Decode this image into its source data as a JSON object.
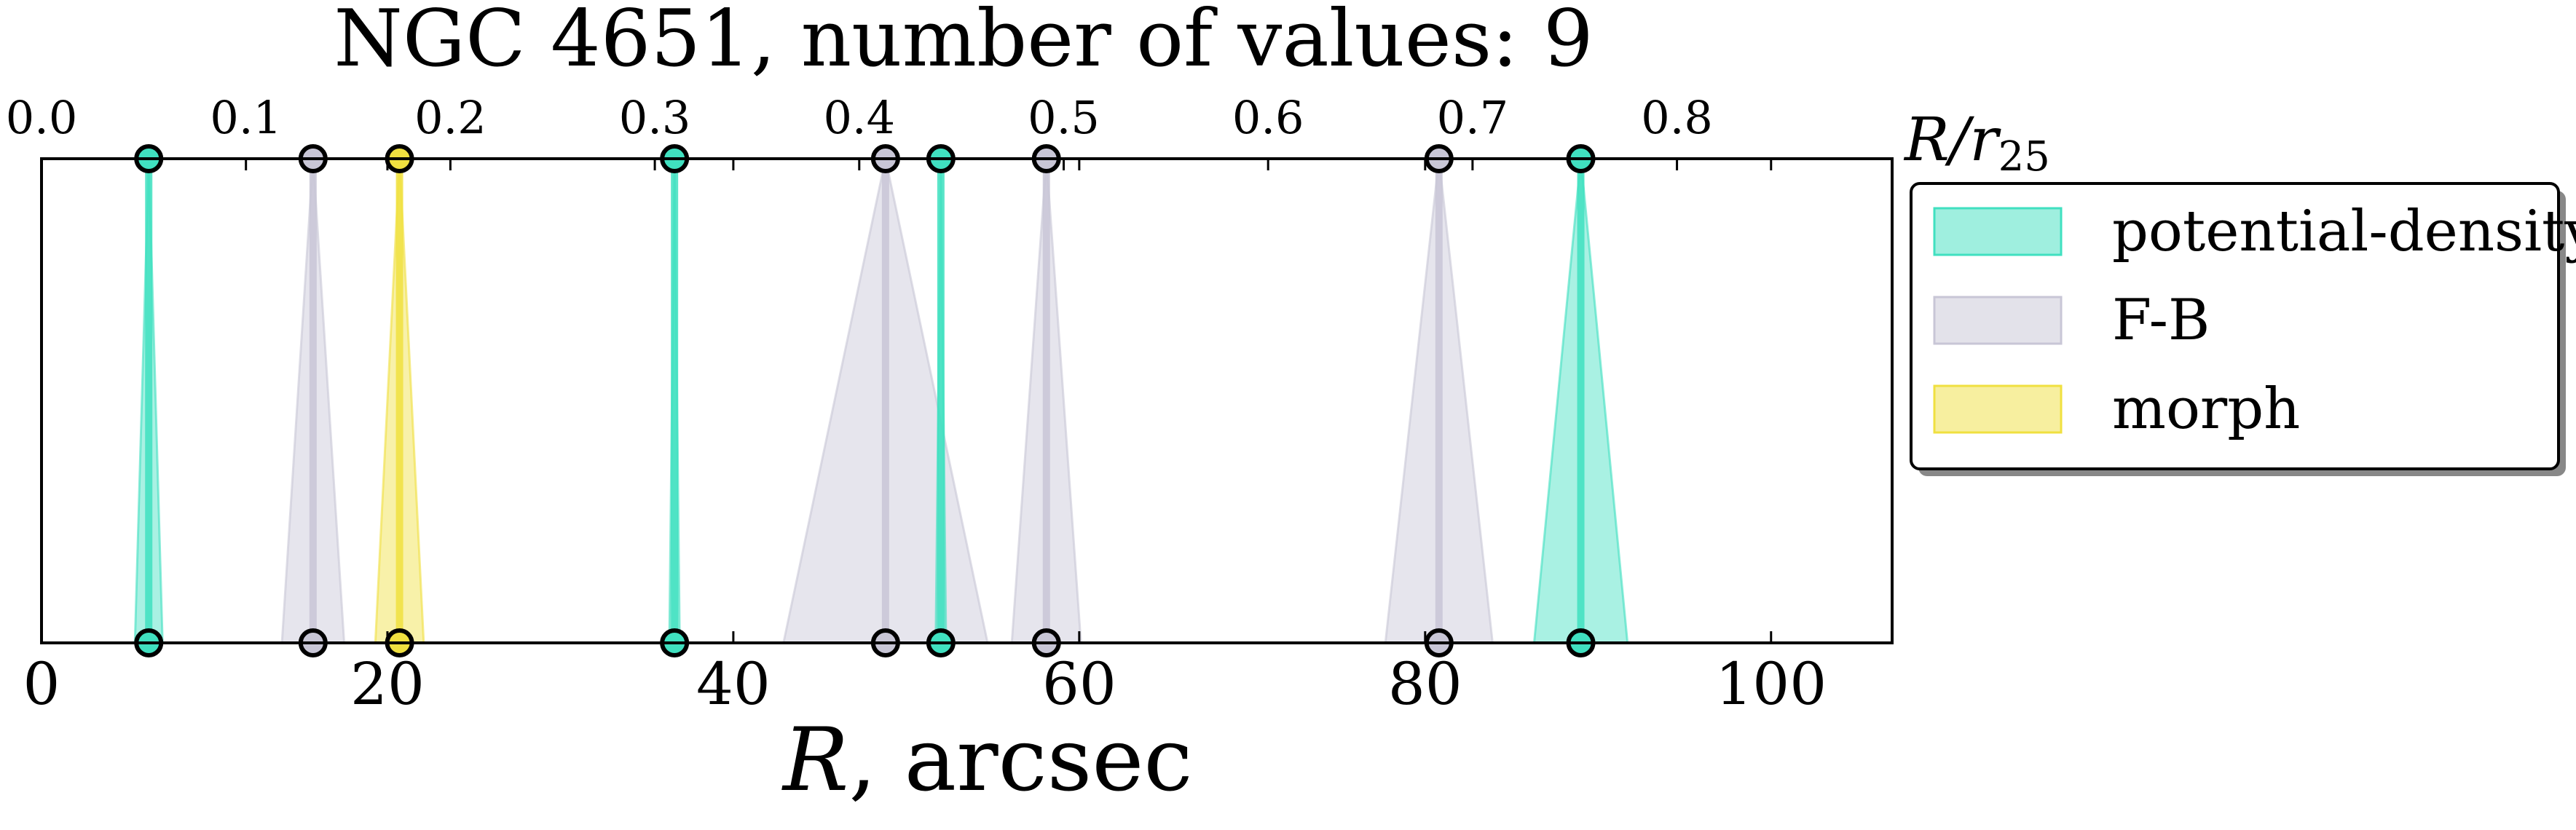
{
  "chart_data": {
    "type": "interval",
    "title": "NGC 4651, number of values: 9",
    "xlabel_main": "R",
    "xlabel_unit": ", arcsec",
    "xlabel_top": "R/r",
    "xlabel_top_sub": "25",
    "xlim": [
      0,
      107
    ],
    "xticks": [
      0,
      20,
      40,
      60,
      80,
      100
    ],
    "xticks_top": [
      "0.0",
      "0.1",
      "0.2",
      "0.3",
      "0.4",
      "0.5",
      "0.6",
      "0.7",
      "0.8"
    ],
    "top_axis_scale_arcsec_per_unit": 118.2,
    "legend_position": "upper-right outside",
    "colors": {
      "potential-density": "#40e0c0",
      "F-B": "#c8c6d6",
      "morph": "#f0e040"
    },
    "series": [
      {
        "name": "potential-density",
        "intervals": [
          {
            "center": 6.2,
            "err": 0.8
          },
          {
            "center": 36.6,
            "err": 0.3
          },
          {
            "center": 52.0,
            "err": 0.3
          },
          {
            "center": 89.0,
            "err": 2.7
          }
        ]
      },
      {
        "name": "F-B",
        "intervals": [
          {
            "center": 15.7,
            "err": 1.8
          },
          {
            "center": 48.8,
            "err": 5.9
          },
          {
            "center": 58.1,
            "err": 2.0
          },
          {
            "center": 80.8,
            "err": 3.1
          }
        ]
      },
      {
        "name": "morph",
        "intervals": [
          {
            "center": 20.7,
            "err": 1.4
          }
        ]
      }
    ]
  }
}
